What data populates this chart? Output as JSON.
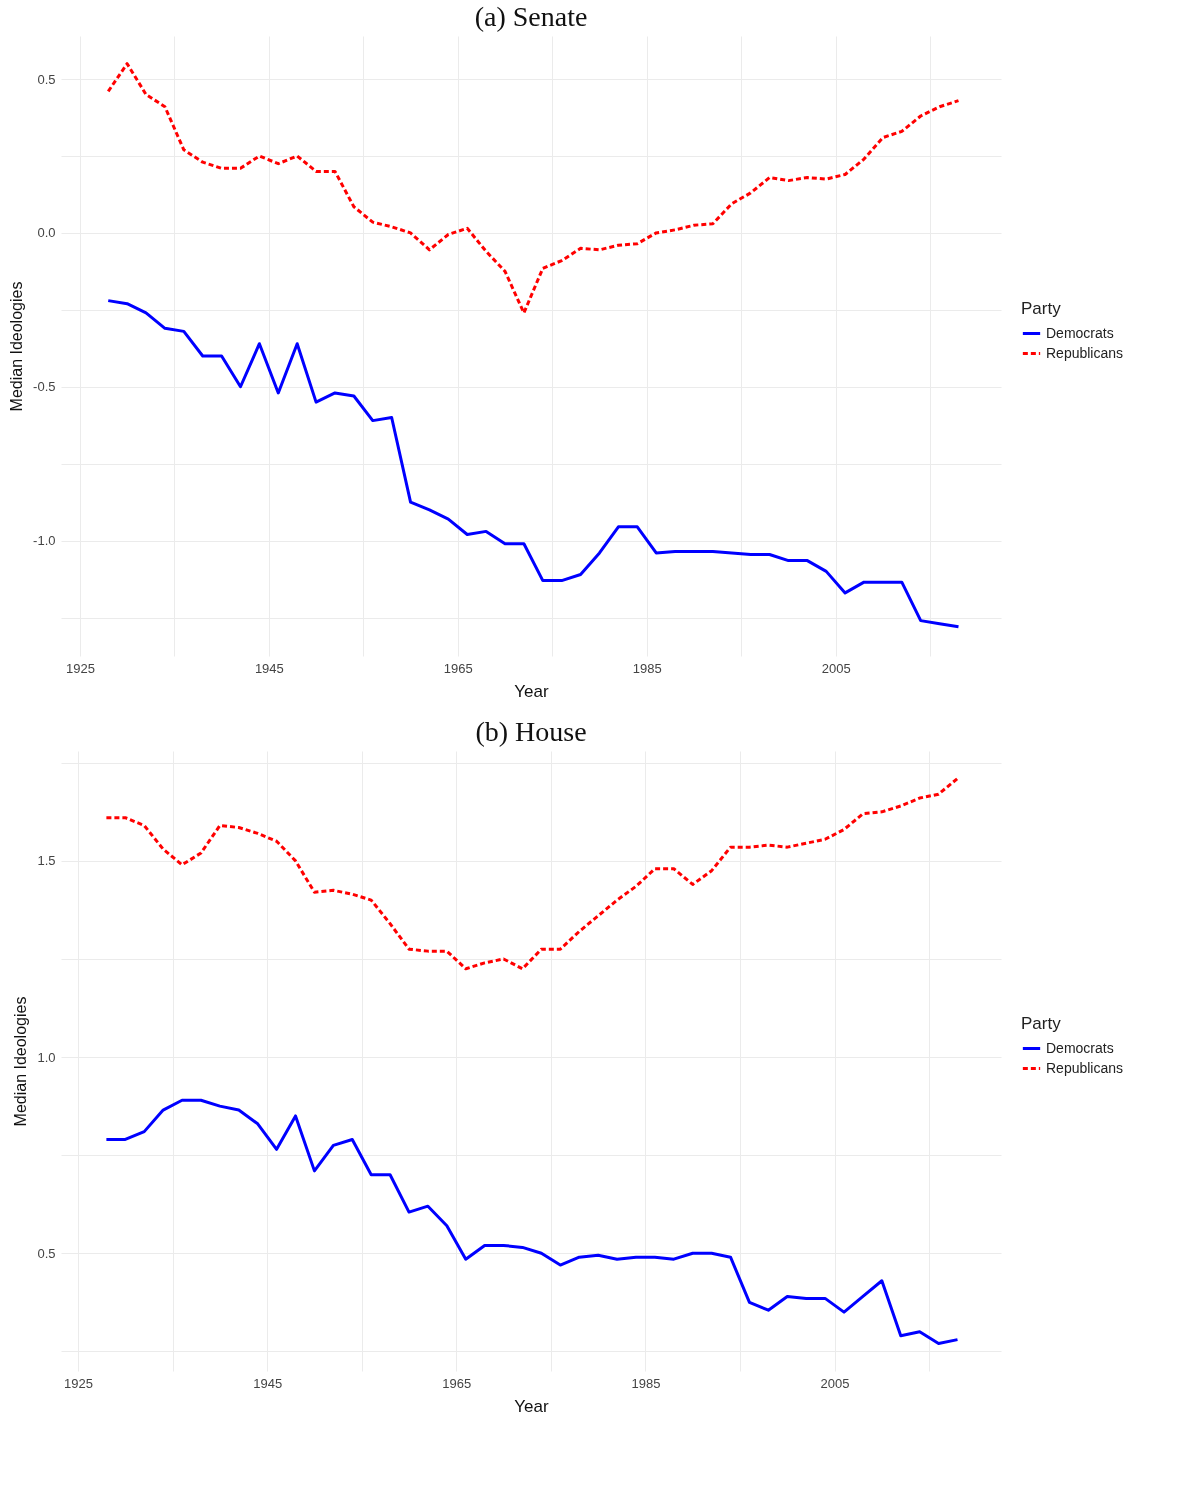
{
  "chart_data": [
    {
      "type": "line",
      "title": "(a) Senate",
      "xlabel": "Year",
      "ylabel": "Median Ideologies",
      "legend_title": "Party",
      "legend": "right",
      "grid": true,
      "x": [
        1928,
        1930,
        1932,
        1934,
        1936,
        1938,
        1940,
        1942,
        1944,
        1946,
        1948,
        1950,
        1952,
        1954,
        1956,
        1958,
        1960,
        1962,
        1964,
        1966,
        1968,
        1970,
        1972,
        1974,
        1976,
        1978,
        1980,
        1982,
        1984,
        1986,
        1988,
        1990,
        1992,
        1994,
        1996,
        1998,
        2000,
        2002,
        2004,
        2006,
        2008,
        2010,
        2012,
        2014,
        2016,
        2018
      ],
      "xlim": [
        1923,
        2022.5
      ],
      "xticks": [
        1925,
        {
          "value": 1935,
          "label": null
        },
        1945,
        {
          "value": 1955,
          "label": null
        },
        1965,
        {
          "value": 1975,
          "label": null
        },
        1985,
        {
          "value": 1995,
          "label": null
        },
        2005,
        {
          "value": 2015,
          "label": null
        }
      ],
      "ylim": [
        -1.375,
        0.64
      ],
      "yticks": [
        {
          "value": -1.25,
          "label": null
        },
        {
          "value": -1,
          "label": "-1.0"
        },
        {
          "value": -0.75,
          "label": null
        },
        {
          "value": -0.5,
          "label": "-0.5"
        },
        {
          "value": -0.25,
          "label": null
        },
        {
          "value": 0,
          "label": "0.0"
        },
        {
          "value": 0.25,
          "label": null
        },
        {
          "value": 0.5,
          "label": "0.5"
        }
      ],
      "series": [
        {
          "name": "Democrats",
          "color": "#0000ff",
          "line_style": "solid",
          "values": [
            -0.22,
            -0.23,
            -0.26,
            -0.31,
            -0.32,
            -0.4,
            -0.4,
            -0.5,
            -0.36,
            -0.52,
            -0.36,
            -0.55,
            -0.52,
            -0.53,
            -0.61,
            -0.6,
            -0.875,
            -0.9,
            -0.93,
            -0.98,
            -0.97,
            -1.01,
            -1.01,
            -1.13,
            -1.13,
            -1.11,
            -1.04,
            -0.955,
            -0.955,
            -1.04,
            -1.035,
            -1.035,
            -1.035,
            -1.04,
            -1.045,
            -1.045,
            -1.065,
            -1.065,
            -1.1,
            -1.17,
            -1.135,
            -1.135,
            -1.135,
            -1.26,
            -1.27,
            -1.28
          ]
        },
        {
          "name": "Republicans",
          "color": "#ff0000",
          "line_style": "dashed",
          "values": [
            0.46,
            0.55,
            0.45,
            0.41,
            0.27,
            0.23,
            0.21,
            0.21,
            0.25,
            0.225,
            0.25,
            0.2,
            0.2,
            0.085,
            0.035,
            0.02,
            0,
            -0.055,
            -0.005,
            0.015,
            -0.06,
            -0.125,
            -0.26,
            -0.115,
            -0.09,
            -0.05,
            -0.055,
            -0.04,
            -0.035,
            0,
            0.01,
            0.025,
            0.03,
            0.095,
            0.13,
            0.18,
            0.17,
            0.18,
            0.175,
            0.19,
            0.24,
            0.31,
            0.33,
            0.38,
            0.41,
            0.43
          ]
        }
      ]
    },
    {
      "type": "line",
      "title": "(b) House",
      "xlabel": "Year",
      "ylabel": "Median Ideologies",
      "legend_title": "Party",
      "legend": "right",
      "grid": true,
      "x": [
        1928,
        1930,
        1932,
        1934,
        1936,
        1938,
        1940,
        1942,
        1944,
        1946,
        1948,
        1950,
        1952,
        1954,
        1956,
        1958,
        1960,
        1962,
        1964,
        1966,
        1968,
        1970,
        1972,
        1974,
        1976,
        1978,
        1980,
        1982,
        1984,
        1986,
        1988,
        1990,
        1992,
        1994,
        1996,
        1998,
        2000,
        2002,
        2004,
        2006,
        2008,
        2010,
        2012,
        2014,
        2016,
        2018
      ],
      "xlim": [
        1923.2,
        2022.6
      ],
      "xticks": [
        1925,
        {
          "value": 1935,
          "label": null
        },
        1945,
        {
          "value": 1955,
          "label": null
        },
        1965,
        {
          "value": 1975,
          "label": null
        },
        1985,
        {
          "value": 1995,
          "label": null
        },
        2005,
        {
          "value": 2015,
          "label": null
        }
      ],
      "ylim": [
        0.2,
        1.78
      ],
      "yticks": [
        {
          "value": 0.25,
          "label": null
        },
        {
          "value": 0.5,
          "label": "0.5"
        },
        {
          "value": 0.75,
          "label": null
        },
        {
          "value": 1,
          "label": "1.0"
        },
        {
          "value": 1.25,
          "label": null
        },
        {
          "value": 1.5,
          "label": "1.5"
        },
        {
          "value": 1.75,
          "label": null
        }
      ],
      "series": [
        {
          "name": "Democrats",
          "color": "#0000ff",
          "line_style": "solid",
          "values": [
            0.79,
            0.79,
            0.81,
            0.865,
            0.89,
            0.89,
            0.875,
            0.865,
            0.83,
            0.765,
            0.85,
            0.71,
            0.775,
            0.79,
            0.7,
            0.7,
            0.605,
            0.62,
            0.57,
            0.485,
            0.52,
            0.52,
            0.515,
            0.5,
            0.47,
            0.49,
            0.495,
            0.485,
            0.49,
            0.49,
            0.485,
            0.5,
            0.5,
            0.49,
            0.375,
            0.355,
            0.39,
            0.385,
            0.385,
            0.35,
            0.39,
            0.43,
            0.29,
            0.3,
            0.27,
            0.28
          ]
        },
        {
          "name": "Republicans",
          "color": "#ff0000",
          "line_style": "dashed",
          "values": [
            1.61,
            1.61,
            1.59,
            1.53,
            1.49,
            1.52,
            1.59,
            1.585,
            1.57,
            1.55,
            1.5,
            1.42,
            1.425,
            1.415,
            1.4,
            1.34,
            1.275,
            1.27,
            1.27,
            1.225,
            1.24,
            1.25,
            1.225,
            1.275,
            1.275,
            1.32,
            1.36,
            1.4,
            1.435,
            1.48,
            1.48,
            1.44,
            1.475,
            1.535,
            1.535,
            1.54,
            1.535,
            1.545,
            1.555,
            1.58,
            1.62,
            1.625,
            1.64,
            1.66,
            1.67,
            1.71
          ]
        }
      ]
    }
  ]
}
